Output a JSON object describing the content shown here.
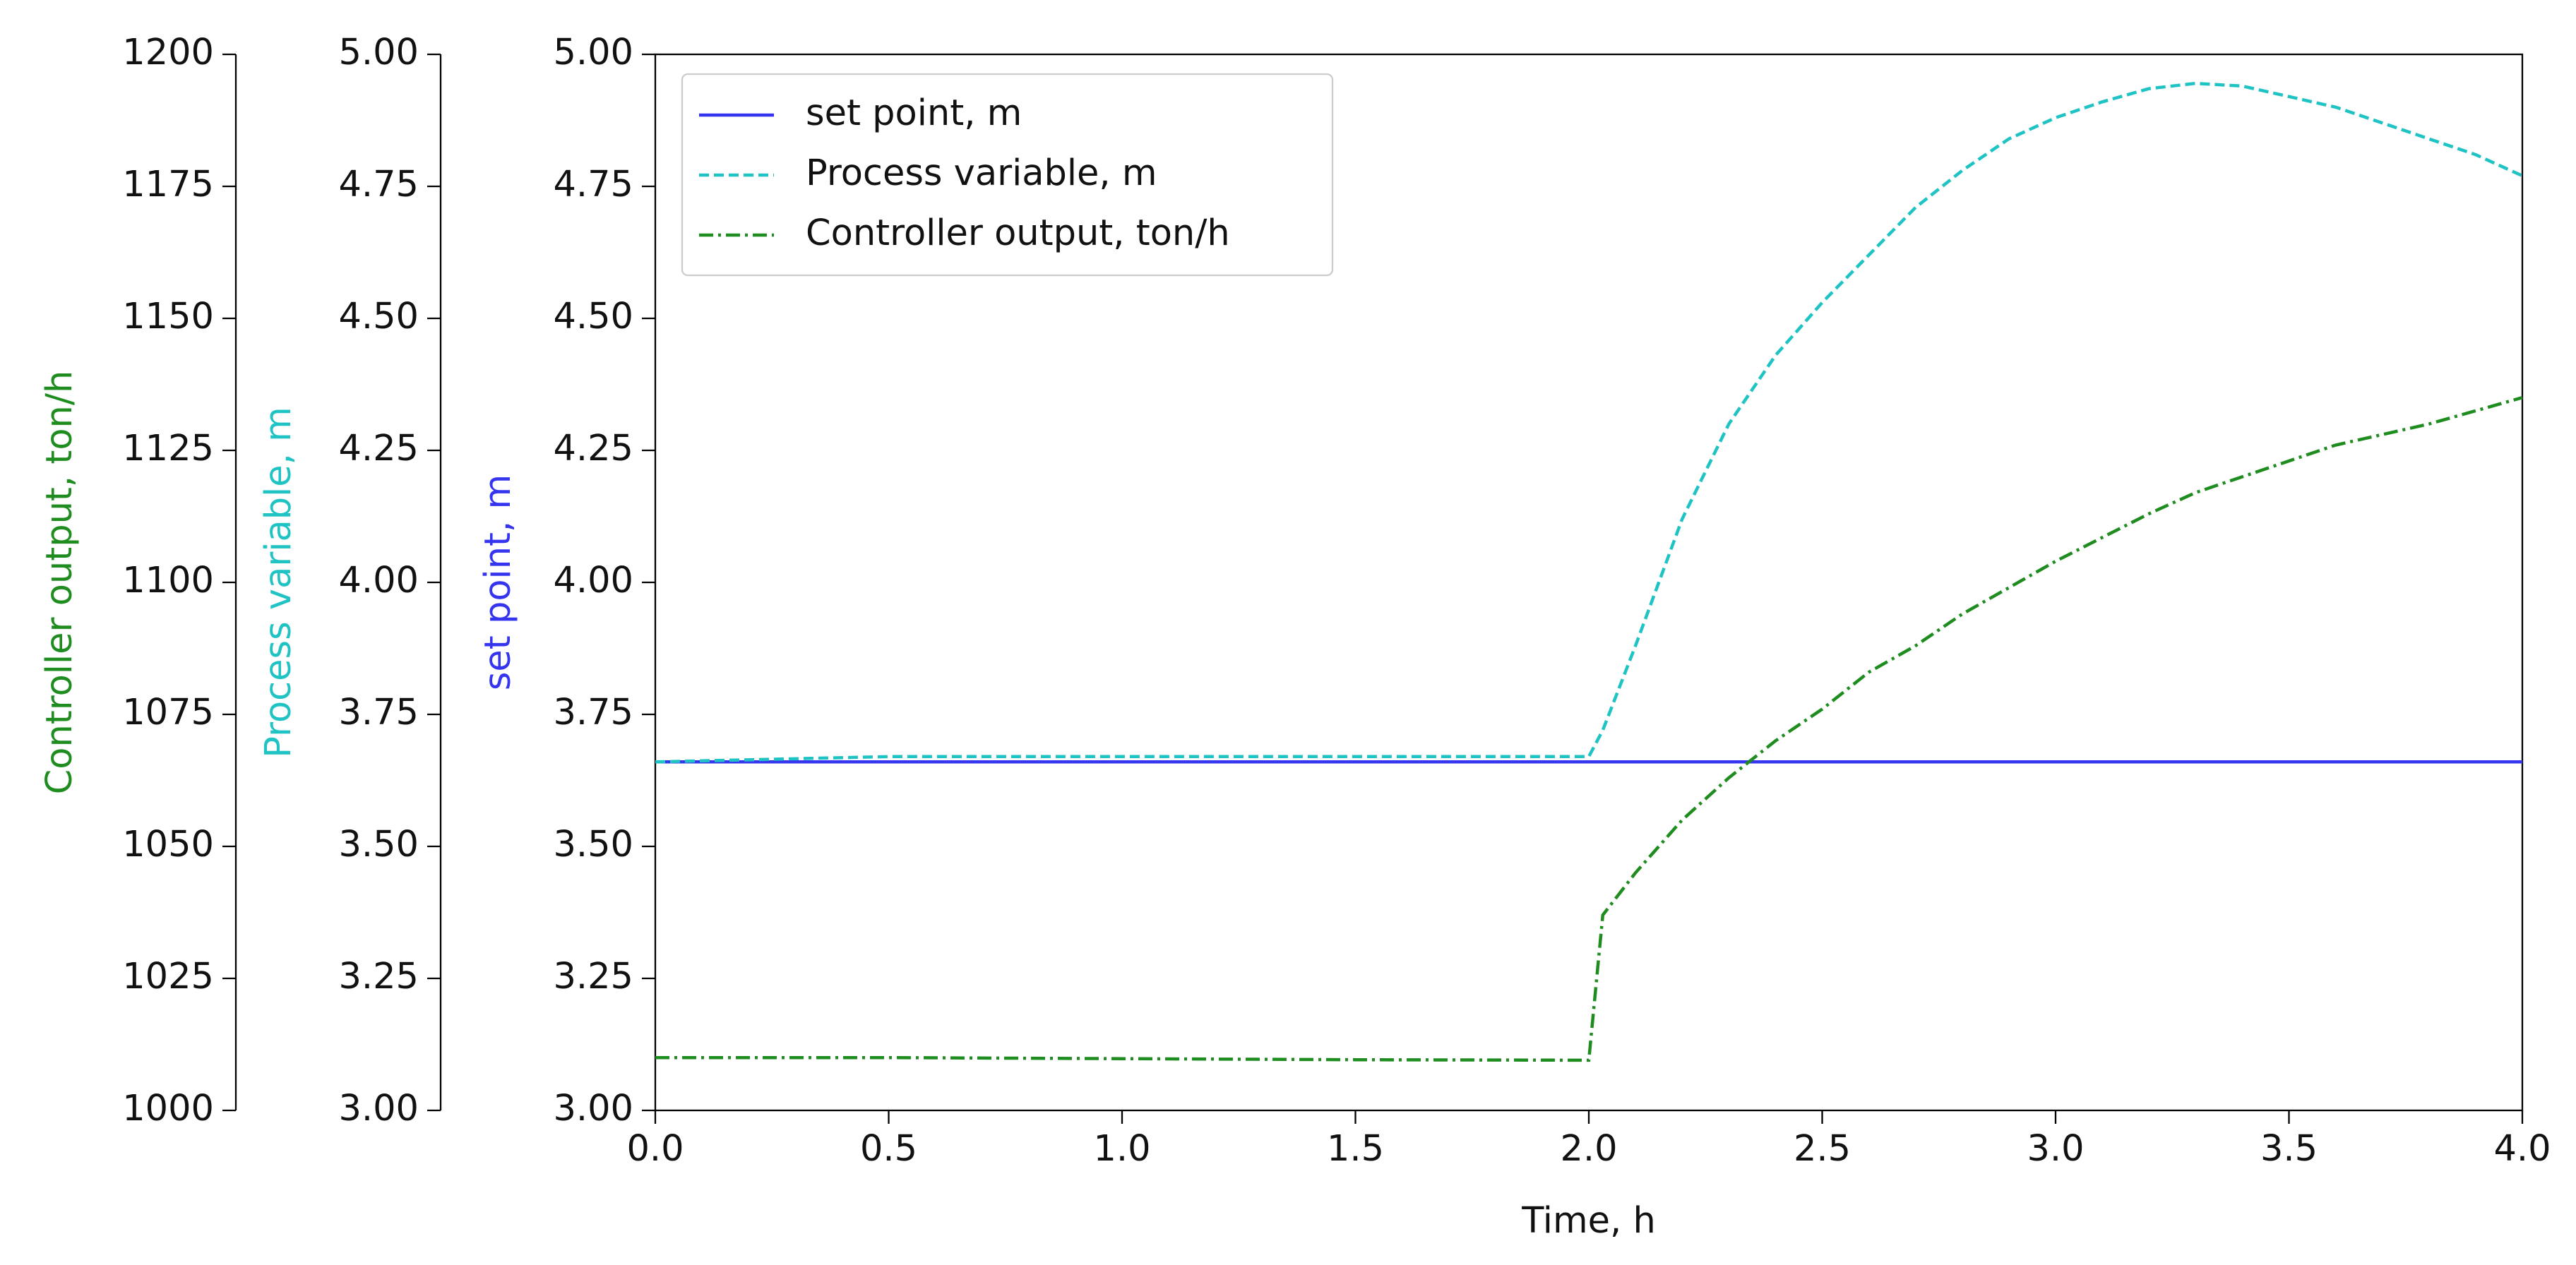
{
  "chart_data": {
    "type": "line",
    "xlabel": "Time, h",
    "ylabel": "set point, m",
    "y2label": "Process variable, m",
    "y3label": "Controller output, ton/h",
    "x": [
      0,
      0.5,
      1,
      1.5,
      2,
      2.03,
      2.1,
      2.2,
      2.3,
      2.4,
      2.5,
      2.6,
      2.7,
      2.8,
      2.9,
      3.0,
      3.1,
      3.2,
      3.3,
      3.4,
      3.5,
      3.6,
      3.7,
      3.8,
      3.9,
      4.0
    ],
    "series": [
      {
        "name": "set point, m",
        "color": "#3535f0",
        "style": "solid",
        "axis": "y",
        "values": [
          3.66,
          3.66,
          3.66,
          3.66,
          3.66,
          3.66,
          3.66,
          3.66,
          3.66,
          3.66,
          3.66,
          3.66,
          3.66,
          3.66,
          3.66,
          3.66,
          3.66,
          3.66,
          3.66,
          3.66,
          3.66,
          3.66,
          3.66,
          3.66,
          3.66,
          3.66
        ]
      },
      {
        "name": "Process variable, m",
        "color": "#1fc3c3",
        "style": "dashed",
        "axis": "y2",
        "values": [
          3.66,
          3.67,
          3.67,
          3.67,
          3.67,
          3.72,
          3.88,
          4.12,
          4.3,
          4.43,
          4.53,
          4.62,
          4.71,
          4.78,
          4.84,
          4.88,
          4.91,
          4.935,
          4.945,
          4.94,
          4.92,
          4.9,
          4.87,
          4.84,
          4.81,
          4.77
        ]
      },
      {
        "name": "Controller output, ton/h",
        "color": "#1e8c1e",
        "style": "dashdot",
        "axis": "y3",
        "values": [
          1010,
          1010,
          1009.8,
          1009.6,
          1009.5,
          1037,
          1045,
          1055,
          1063,
          1070,
          1076,
          1083,
          1088,
          1094,
          1099,
          1104,
          1108.5,
          1113,
          1117,
          1120,
          1123,
          1126,
          1128,
          1130,
          1132.5,
          1135
        ]
      }
    ],
    "xlim": [
      0,
      4
    ],
    "xticks": [
      {
        "value": 0,
        "label": "0.0"
      },
      0.5,
      {
        "value": 1,
        "label": "1.0"
      },
      1.5,
      {
        "value": 2,
        "label": "2.0"
      },
      2.5,
      {
        "value": 3,
        "label": "3.0"
      },
      3.5,
      {
        "value": 4,
        "label": "4.0"
      }
    ],
    "ylim": [
      3,
      5
    ],
    "yticks": [
      {
        "value": 3,
        "label": "3.00"
      },
      {
        "value": 3.25,
        "label": "3.25"
      },
      {
        "value": 3.5,
        "label": "3.50"
      },
      {
        "value": 3.75,
        "label": "3.75"
      },
      {
        "value": 4,
        "label": "4.00"
      },
      {
        "value": 4.25,
        "label": "4.25"
      },
      {
        "value": 4.5,
        "label": "4.50"
      },
      {
        "value": 4.75,
        "label": "4.75"
      },
      {
        "value": 5,
        "label": "5.00"
      }
    ],
    "y2lim": [
      3,
      5
    ],
    "y2ticks": [
      {
        "value": 3,
        "label": "3.00"
      },
      {
        "value": 3.25,
        "label": "3.25"
      },
      {
        "value": 3.5,
        "label": "3.50"
      },
      {
        "value": 3.75,
        "label": "3.75"
      },
      {
        "value": 4,
        "label": "4.00"
      },
      {
        "value": 4.25,
        "label": "4.25"
      },
      {
        "value": 4.5,
        "label": "4.50"
      },
      {
        "value": 4.75,
        "label": "4.75"
      },
      {
        "value": 5,
        "label": "5.00"
      }
    ],
    "y3lim": [
      1000,
      1200
    ],
    "y3ticks": [
      1000,
      1025,
      1050,
      1075,
      1100,
      1125,
      1150,
      1175,
      1200
    ],
    "legend": "upper left",
    "grid": false
  }
}
